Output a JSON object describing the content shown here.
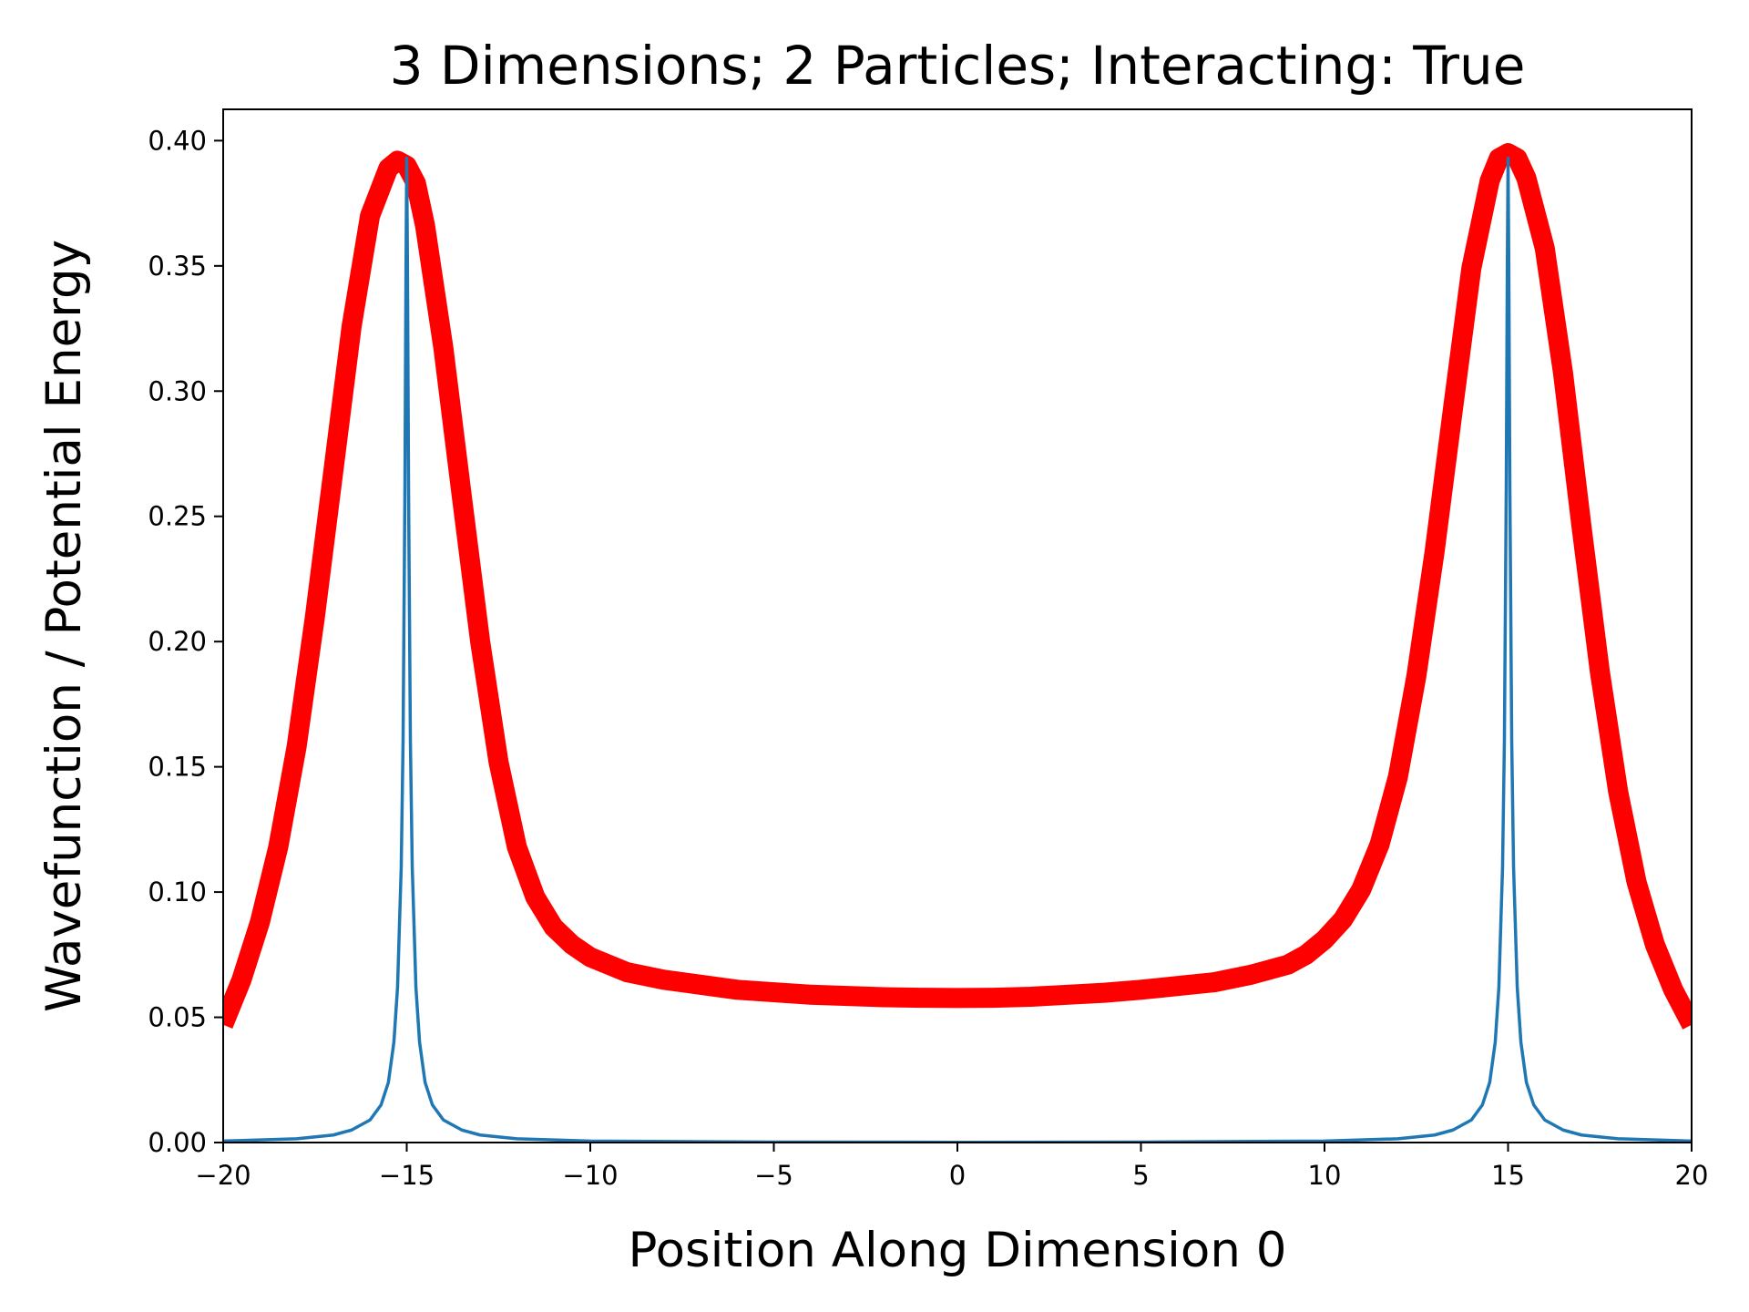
{
  "chart_data": {
    "type": "line",
    "title": "3 Dimensions; 2 Particles; Interacting: True",
    "xlabel": "Position Along Dimension 0",
    "ylabel": "Wavefunction / Potential Energy",
    "xlim": [
      -20,
      20
    ],
    "ylim": [
      0,
      0.4125
    ],
    "xticks": [
      -20,
      -15,
      -10,
      -5,
      0,
      5,
      10,
      15,
      20
    ],
    "xtick_labels": [
      "−20",
      "−15",
      "−10",
      "−5",
      "0",
      "5",
      "10",
      "15",
      "20"
    ],
    "yticks": [
      0.0,
      0.05,
      0.1,
      0.15,
      0.2,
      0.25,
      0.3,
      0.35,
      0.4
    ],
    "ytick_labels": [
      "0.00",
      "0.05",
      "0.10",
      "0.15",
      "0.20",
      "0.25",
      "0.30",
      "0.35",
      "0.40"
    ],
    "grid": false,
    "legend": "none",
    "series": [
      {
        "color": "#ff0000",
        "style": "thick",
        "x": [
          -20,
          -19.5,
          -19,
          -18.5,
          -18,
          -17.5,
          -17,
          -16.5,
          -16,
          -15.5,
          -15.25,
          -15,
          -14.75,
          -14.5,
          -14,
          -13.5,
          -13,
          -12.5,
          -12,
          -11.5,
          -11,
          -10.5,
          -10,
          -9.5,
          -9,
          -8,
          -7,
          -6,
          -5,
          -4,
          -3,
          -2,
          -1,
          0,
          1,
          2,
          3,
          4,
          5,
          6,
          7,
          8,
          9,
          9.5,
          10,
          10.5,
          11,
          11.5,
          12,
          12.5,
          13,
          13.5,
          14,
          14.5,
          14.75,
          15,
          15.25,
          15.5,
          16,
          16.5,
          17,
          17.5,
          18,
          18.5,
          19,
          19.5,
          20
        ],
        "y": [
          0.047,
          0.065,
          0.088,
          0.118,
          0.158,
          0.21,
          0.268,
          0.326,
          0.37,
          0.389,
          0.392,
          0.39,
          0.383,
          0.366,
          0.317,
          0.258,
          0.2,
          0.152,
          0.118,
          0.098,
          0.086,
          0.079,
          0.074,
          0.071,
          0.068,
          0.065,
          0.063,
          0.061,
          0.06,
          0.059,
          0.0585,
          0.058,
          0.0578,
          0.0577,
          0.0578,
          0.0582,
          0.059,
          0.0598,
          0.061,
          0.0625,
          0.064,
          0.067,
          0.071,
          0.075,
          0.081,
          0.089,
          0.101,
          0.119,
          0.146,
          0.186,
          0.236,
          0.293,
          0.349,
          0.384,
          0.393,
          0.395,
          0.393,
          0.385,
          0.357,
          0.307,
          0.246,
          0.188,
          0.14,
          0.104,
          0.079,
          0.061,
          0.047
        ]
      },
      {
        "color": "#1f77b4",
        "style": "thin",
        "x": [
          -20,
          -18,
          -17,
          -16.5,
          -16,
          -15.7,
          -15.5,
          -15.35,
          -15.25,
          -15.15,
          -15.1,
          -15.05,
          -15.02,
          -15,
          -14.98,
          -14.95,
          -14.9,
          -14.85,
          -14.75,
          -14.65,
          -14.5,
          -14.3,
          -14,
          -13.5,
          -13,
          -12,
          -10,
          -5,
          0,
          5,
          10,
          12,
          13,
          13.5,
          14,
          14.3,
          14.5,
          14.65,
          14.75,
          14.85,
          14.9,
          14.95,
          14.98,
          15,
          15.02,
          15.05,
          15.1,
          15.15,
          15.25,
          15.35,
          15.5,
          15.7,
          16,
          16.5,
          17,
          18,
          20
        ],
        "y": [
          0.0006,
          0.0015,
          0.003,
          0.005,
          0.009,
          0.015,
          0.024,
          0.04,
          0.062,
          0.11,
          0.16,
          0.26,
          0.35,
          0.393,
          0.35,
          0.26,
          0.16,
          0.11,
          0.062,
          0.04,
          0.024,
          0.015,
          0.009,
          0.005,
          0.003,
          0.0015,
          0.0006,
          0.0002,
          0.0001,
          0.0002,
          0.0006,
          0.0015,
          0.003,
          0.005,
          0.009,
          0.015,
          0.024,
          0.04,
          0.062,
          0.11,
          0.16,
          0.26,
          0.35,
          0.393,
          0.35,
          0.26,
          0.16,
          0.11,
          0.062,
          0.04,
          0.024,
          0.015,
          0.009,
          0.005,
          0.003,
          0.0015,
          0.0006
        ]
      }
    ]
  }
}
